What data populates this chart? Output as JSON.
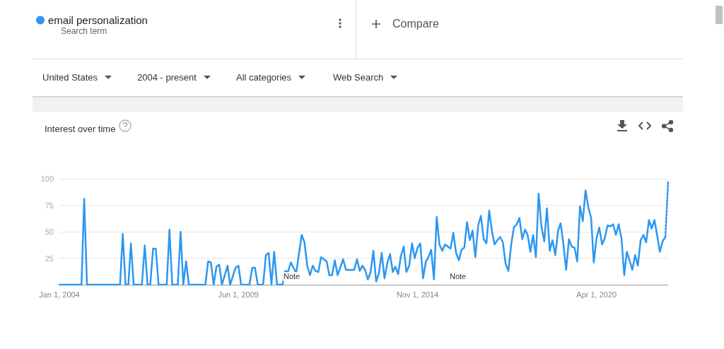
{
  "chart_data": {
    "type": "line",
    "title": "Interest over time",
    "subtitle": "Search term",
    "annotations": [
      "Compare",
      "United States",
      "2004 - present",
      "All categories",
      "Web Search",
      "Note",
      "Note"
    ],
    "xlim": [
      "2004-01",
      "2022-06"
    ],
    "xticks": [
      {
        "value": "2004-01",
        "label": "Jan 1, 2004"
      },
      {
        "value": "2009-06",
        "label": "Jun 1, 2009"
      },
      {
        "value": "2014-11",
        "label": "Nov 1, 2014"
      },
      {
        "value": "2020-04",
        "label": "Apr 1, 2020"
      }
    ],
    "ylim": [
      0,
      100
    ],
    "yticks": [
      25,
      50,
      75,
      100
    ],
    "grid": "y",
    "legend": "top left",
    "marker": "none",
    "tick_labels": "xy",
    "series": [
      {
        "name": "email personalization",
        "color": "#2d97f0",
        "line_style": "solid",
        "x": [
          "2004-01",
          "2004-09",
          "2004-10",
          "2004-11",
          "2005-11",
          "2005-12",
          "2006-01",
          "2006-02",
          "2006-03",
          "2006-04",
          "2006-07",
          "2006-08",
          "2006-09",
          "2006-10",
          "2006-11",
          "2006-12",
          "2007-01",
          "2007-04",
          "2007-05",
          "2007-06",
          "2007-08",
          "2007-09",
          "2007-10",
          "2007-11",
          "2007-12",
          "2008-06",
          "2008-07",
          "2008-08",
          "2008-09",
          "2008-10",
          "2008-11",
          "2008-12",
          "2009-02",
          "2009-03",
          "2009-05",
          "2009-06",
          "2009-07",
          "2009-10",
          "2009-11",
          "2009-12",
          "2010-01",
          "2010-03",
          "2010-04",
          "2010-05",
          "2010-06",
          "2010-07",
          "2010-08",
          "2010-10",
          "2010-11",
          "2010-12",
          "2011-01",
          "2011-03",
          "2011-05",
          "2011-06",
          "2011-07",
          "2011-08",
          "2011-09",
          "2011-10",
          "2011-11",
          "2011-12",
          "2012-02",
          "2012-03",
          "2012-04",
          "2012-05",
          "2012-06",
          "2012-08",
          "2012-09",
          "2012-11",
          "2012-12",
          "2013-01",
          "2013-02",
          "2013-03",
          "2013-04",
          "2013-05",
          "2013-06",
          "2013-07",
          "2013-08",
          "2013-09",
          "2013-10",
          "2013-11",
          "2013-12",
          "2014-01",
          "2014-02",
          "2014-03",
          "2014-04",
          "2014-05",
          "2014-06",
          "2014-07",
          "2014-08",
          "2014-09",
          "2014-10",
          "2014-11",
          "2014-12",
          "2015-01",
          "2015-02",
          "2015-03",
          "2015-04",
          "2015-05",
          "2015-06",
          "2015-07",
          "2015-08",
          "2015-09",
          "2015-10",
          "2015-11",
          "2015-12",
          "2016-01",
          "2016-02",
          "2016-03",
          "2016-04",
          "2016-05",
          "2016-06",
          "2016-07",
          "2016-08",
          "2016-09",
          "2016-10",
          "2016-11",
          "2016-12",
          "2017-01",
          "2017-02",
          "2017-03",
          "2017-04",
          "2017-05",
          "2017-06",
          "2017-07",
          "2017-08",
          "2017-09",
          "2017-10",
          "2017-11",
          "2017-12",
          "2018-01",
          "2018-02",
          "2018-03",
          "2018-04",
          "2018-05",
          "2018-06",
          "2018-07",
          "2018-08",
          "2018-09",
          "2018-10",
          "2018-11",
          "2018-12",
          "2019-01",
          "2019-02",
          "2019-03",
          "2019-04",
          "2019-05",
          "2019-06",
          "2019-07",
          "2019-08",
          "2019-09",
          "2019-10",
          "2019-11",
          "2019-12",
          "2020-01",
          "2020-02",
          "2020-03",
          "2020-04",
          "2020-05",
          "2020-06",
          "2020-07",
          "2020-08",
          "2020-09",
          "2020-10",
          "2020-11",
          "2020-12",
          "2021-01",
          "2021-02",
          "2021-03",
          "2021-04",
          "2021-05",
          "2021-06",
          "2021-07",
          "2021-08",
          "2021-09",
          "2021-10",
          "2021-11",
          "2021-12",
          "2022-01",
          "2022-02",
          "2022-03",
          "2022-04",
          "2022-05"
        ],
        "values": [
          0,
          0,
          81,
          0,
          0,
          48,
          0,
          0,
          39,
          0,
          0,
          37,
          0,
          0,
          34,
          34,
          0,
          0,
          52,
          0,
          0,
          50,
          0,
          22,
          0,
          0,
          22,
          21,
          0,
          17,
          19,
          0,
          18,
          0,
          16,
          18,
          0,
          0,
          16,
          16,
          0,
          0,
          28,
          30,
          0,
          31,
          0,
          0,
          13,
          12,
          21,
          11,
          47,
          40,
          18,
          9,
          18,
          13,
          12,
          26,
          22,
          9,
          9,
          23,
          9,
          24,
          14,
          14,
          14,
          24,
          13,
          18,
          14,
          5,
          12,
          32,
          3,
          11,
          30,
          6,
          20,
          29,
          12,
          17,
          10,
          27,
          36,
          12,
          18,
          39,
          25,
          35,
          39,
          6,
          22,
          26,
          33,
          5,
          64,
          38,
          32,
          38,
          36,
          34,
          49,
          30,
          23,
          33,
          35,
          59,
          42,
          51,
          26,
          56,
          65,
          43,
          39,
          70,
          50,
          38,
          42,
          45,
          40,
          20,
          13,
          38,
          54,
          57,
          63,
          43,
          52,
          47,
          31,
          47,
          26,
          86,
          55,
          41,
          72,
          32,
          42,
          28,
          51,
          58,
          38,
          14,
          43,
          36,
          35,
          22,
          74,
          60,
          89,
          73,
          63,
          21,
          44,
          54,
          38,
          44,
          56,
          55,
          57,
          47,
          57,
          44,
          9,
          31,
          23,
          14,
          28,
          18,
          42,
          47,
          40,
          61,
          53,
          61,
          46,
          31,
          41,
          45
        ]
      },
      {
        "color": "#2d97f0",
        "line_style": "dotted",
        "x": [
          "2022-05",
          "2022-06"
        ],
        "values": [
          45,
          97
        ]
      }
    ]
  }
}
